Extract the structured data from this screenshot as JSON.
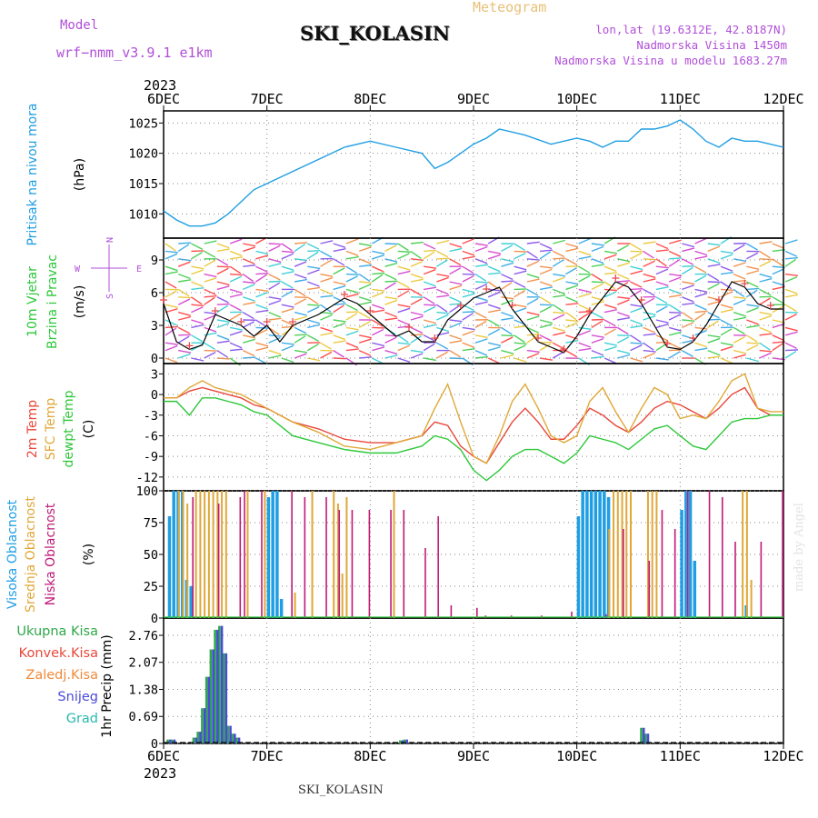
{
  "header": {
    "model_label": "Model",
    "model_version": "wrf−nmm_v3.9.1  e1km",
    "station": "SKI_KOLASIN",
    "product": "Meteogram",
    "coords": "lon,lat (19.6312E, 42.8187N)",
    "elevation": "Nadmorska Visina 1450m",
    "model_elevation": "Nadmorska Visina u modelu 1683.27m"
  },
  "footer": {
    "station": "SKI_KOLASIN",
    "credit": "made by Angel"
  },
  "time_axis": {
    "year": "2023",
    "ticks": [
      "6DEC",
      "7DEC",
      "8DEC",
      "9DEC",
      "10DEC",
      "11DEC",
      "12DEC"
    ],
    "hours": 144
  },
  "colors": {
    "pressure": "#1f9ee3",
    "temp_2m": "#e8473a",
    "temp_sfc": "#e0a838",
    "dewpoint": "#2ec83a",
    "cloud_high": "#1f9ee3",
    "cloud_mid": "#e0a838",
    "cloud_low": "#c01a78",
    "precip_total": "#2ea84a",
    "precip_conv": "#e8473a",
    "precip_frz": "#f08a3a",
    "precip_snow": "#4a4ad8",
    "precip_grad": "#28b8b0",
    "wind_label": "#2ec83a",
    "compass": "#b04fd8"
  },
  "chart_data": [
    {
      "type": "line",
      "panel": "pressure",
      "ylabel": "Pritisak na nivou mora",
      "unit": "(hPa)",
      "ylim": [
        1006,
        1027
      ],
      "yticks": [
        1010,
        1015,
        1020,
        1025
      ],
      "x_hours": [
        0,
        3,
        6,
        9,
        12,
        15,
        18,
        21,
        24,
        30,
        36,
        42,
        48,
        54,
        60,
        63,
        66,
        69,
        72,
        75,
        78,
        84,
        90,
        96,
        99,
        102,
        105,
        108,
        111,
        114,
        117,
        120,
        123,
        126,
        129,
        132,
        135,
        138,
        141,
        144
      ],
      "values": [
        1010.5,
        1009,
        1008,
        1008,
        1008.5,
        1010,
        1012,
        1014,
        1015,
        1017,
        1019,
        1021,
        1022,
        1021,
        1020,
        1017.5,
        1018.5,
        1020,
        1021.5,
        1022.5,
        1024,
        1023,
        1021.5,
        1022.5,
        1022,
        1021,
        1022,
        1022,
        1024,
        1024,
        1024.5,
        1025.5,
        1024,
        1022,
        1021,
        1022.5,
        1022,
        1022,
        1021.5,
        1021
      ],
      "series": [
        {
          "name": "Pritisak na nivou mora",
          "color_key": "pressure"
        }
      ]
    },
    {
      "type": "line",
      "panel": "wind",
      "ylabel": [
        "10m Vjetar",
        "Brzina i Pravac"
      ],
      "unit": "(m/s)",
      "ylim": [
        -0.5,
        11
      ],
      "yticks": [
        0,
        3,
        6,
        9
      ],
      "compass": {
        "north": "N",
        "south": "S",
        "west": "W",
        "east": "E"
      },
      "x_hours": [
        0,
        3,
        6,
        9,
        12,
        15,
        18,
        21,
        24,
        27,
        30,
        36,
        42,
        45,
        48,
        54,
        57,
        60,
        63,
        66,
        69,
        72,
        75,
        78,
        81,
        84,
        87,
        90,
        93,
        96,
        99,
        102,
        105,
        108,
        111,
        114,
        117,
        120,
        123,
        126,
        129,
        132,
        135,
        138,
        141,
        144
      ],
      "values": [
        5,
        1.5,
        0.8,
        1.2,
        4,
        3.5,
        3,
        2,
        3,
        1.5,
        3,
        4,
        5.5,
        5,
        4,
        2,
        2.5,
        1.5,
        1.5,
        3.5,
        4.5,
        5.5,
        6,
        6.5,
        4.5,
        3,
        1.5,
        1,
        0.5,
        2,
        4,
        5.5,
        7,
        6.5,
        5,
        3,
        1,
        0.8,
        1.5,
        3,
        5,
        7,
        6.5,
        5,
        4.5,
        4.5
      ]
    },
    {
      "type": "line",
      "panel": "temperature",
      "ylabel": [
        "2m Temp",
        "SFC Temp",
        "dewpt Temp"
      ],
      "unit": "(C)",
      "ylim": [
        -14,
        4.5
      ],
      "yticks": [
        3,
        0,
        -3,
        -6,
        -9,
        -12
      ],
      "x_hours": [
        0,
        3,
        6,
        9,
        12,
        15,
        18,
        21,
        24,
        27,
        30,
        36,
        42,
        48,
        54,
        60,
        63,
        66,
        69,
        72,
        75,
        78,
        81,
        84,
        87,
        90,
        93,
        96,
        99,
        102,
        105,
        108,
        111,
        114,
        117,
        120,
        123,
        126,
        129,
        132,
        135,
        138,
        141,
        144
      ],
      "series": [
        {
          "name": "2m Temp",
          "color_key": "temp_2m",
          "values": [
            -0.5,
            -0.5,
            0.5,
            1,
            0.5,
            0,
            -0.5,
            -1.5,
            -2,
            -3,
            -4,
            -5,
            -6.5,
            -7,
            -7,
            -6,
            -4,
            -4.5,
            -7.5,
            -9,
            -10,
            -7,
            -4,
            -2,
            -4,
            -6.5,
            -6.5,
            -4.5,
            -2,
            -3,
            -4.5,
            -5.5,
            -4,
            -2,
            -1,
            -1.5,
            -2.5,
            -3.5,
            -2,
            0,
            1,
            -2,
            -3,
            -3
          ]
        },
        {
          "name": "SFC Temp",
          "color_key": "temp_sfc",
          "values": [
            -0.5,
            -0.5,
            1,
            2,
            1,
            0.5,
            0,
            -1,
            -2,
            -3,
            -4,
            -5.5,
            -7.5,
            -8,
            -7,
            -6,
            -2,
            1.5,
            -4,
            -9,
            -10,
            -6,
            -1,
            1.5,
            -2,
            -6,
            -7,
            -6,
            -1,
            1,
            -2.5,
            -5.5,
            -2,
            1,
            0,
            -3.5,
            -3,
            -3.5,
            -1,
            2,
            3,
            -2,
            -2.5,
            -2.5
          ]
        },
        {
          "name": "dewpt Temp",
          "color_key": "dewpoint",
          "values": [
            -1,
            -1,
            -3,
            -0.5,
            -0.5,
            -1,
            -1.5,
            -2.5,
            -3,
            -4.5,
            -6,
            -7,
            -8,
            -8.5,
            -8.5,
            -7.5,
            -6,
            -6.5,
            -8,
            -11,
            -12.5,
            -11,
            -9,
            -8,
            -8,
            -9,
            -10,
            -8.5,
            -6,
            -6.5,
            -7,
            -8,
            -6.5,
            -5,
            -4.5,
            -6,
            -7.5,
            -8,
            -6,
            -4,
            -3.5,
            -3.5,
            -3,
            -3
          ]
        }
      ]
    },
    {
      "type": "bar",
      "panel": "clouds",
      "ylabel": [
        "Visoka Oblacnost",
        "Srednja Oblacnost",
        "Niska Oblacnost"
      ],
      "unit": "(%)",
      "ylim": [
        0,
        100
      ],
      "yticks": [
        0,
        25,
        50,
        75,
        100
      ],
      "series": [
        {
          "name": "Visoka Oblacnost",
          "color_key": "cloud_high",
          "x_hours": [
            1,
            2,
            3,
            4,
            5,
            6,
            24,
            25,
            26,
            27,
            96,
            97,
            98,
            99,
            100,
            101,
            102,
            103,
            120,
            121,
            122,
            123,
            135
          ],
          "values": [
            80,
            100,
            100,
            100,
            30,
            25,
            95,
            100,
            100,
            15,
            80,
            100,
            100,
            100,
            100,
            100,
            100,
            95,
            85,
            100,
            100,
            45,
            10
          ]
        },
        {
          "name": "Srednja Oblacnost",
          "color_key": "cloud_mid",
          "x_hours": [
            3,
            4,
            5,
            7,
            8,
            9,
            10,
            11,
            12,
            13,
            14,
            19,
            23,
            30,
            34,
            39,
            40,
            41,
            42,
            53,
            103,
            104,
            105,
            106,
            107,
            108,
            112,
            113,
            114,
            134,
            135,
            136
          ],
          "values": [
            100,
            100,
            90,
            100,
            100,
            100,
            100,
            100,
            100,
            100,
            100,
            100,
            100,
            20,
            100,
            100,
            90,
            35,
            95,
            100,
            70,
            100,
            100,
            100,
            100,
            100,
            100,
            100,
            100,
            100,
            100,
            30
          ]
        },
        {
          "name": "Niska Oblacnost",
          "color_key": "cloud_low",
          "x_hours": [
            6,
            12,
            17,
            18,
            22,
            29,
            32,
            37,
            40,
            43,
            47,
            52,
            55,
            60,
            63,
            66,
            72,
            74,
            80,
            87,
            94,
            102,
            106,
            112,
            115,
            118,
            121,
            126,
            129,
            132,
            138,
            143
          ],
          "values": [
            95,
            90,
            95,
            100,
            100,
            100,
            95,
            95,
            85,
            85,
            85,
            85,
            85,
            55,
            80,
            10,
            8,
            2,
            2,
            2,
            5,
            3,
            70,
            45,
            85,
            70,
            100,
            100,
            95,
            60,
            60,
            100
          ]
        }
      ]
    },
    {
      "type": "bar",
      "panel": "precipitation",
      "ylabel": "1hr Precip",
      "unit": "(mm)",
      "ylim": [
        0,
        3.2
      ],
      "yticks": [
        0,
        0.69,
        1.38,
        2.07,
        2.76
      ],
      "legend": [
        "Ukupna Kisa",
        "Konvek.Kisa",
        "Zaledj.Kisa",
        "Snijeg",
        "Grad"
      ],
      "x_hours": [
        1,
        2,
        7,
        8,
        9,
        10,
        11,
        12,
        13,
        14,
        15,
        16,
        17,
        55,
        56,
        111,
        112
      ],
      "series": [
        {
          "name": "Ukupna Kisa",
          "color_key": "precip_total",
          "values": [
            0.1,
            0.1,
            0.15,
            0.3,
            0.9,
            1.7,
            2.4,
            2.9,
            3.0,
            2.3,
            0.45,
            0.25,
            0.15,
            0.08,
            0.1,
            0.4,
            0.25
          ]
        },
        {
          "name": "Snijeg",
          "color_key": "precip_snow",
          "values": [
            0.1,
            0.1,
            0.15,
            0.3,
            0.9,
            1.7,
            2.4,
            2.9,
            3.0,
            2.3,
            0.45,
            0.25,
            0.15,
            0.08,
            0.1,
            0.4,
            0.25
          ]
        }
      ]
    }
  ]
}
